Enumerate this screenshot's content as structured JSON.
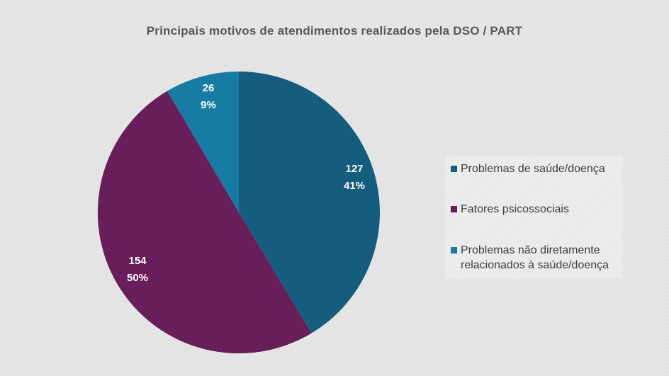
{
  "chart_data": {
    "type": "pie",
    "title": "Principais motivos de atendimentos realizados pela DSO / PART",
    "slices": [
      {
        "label": "Problemas de saúde/doença",
        "value": 127,
        "percent_label": "41%",
        "value_label": "127",
        "color": "#145d7d"
      },
      {
        "label": "Fatores psicossociais",
        "value": 154,
        "percent_label": "50%",
        "value_label": "154",
        "color": "#671e5a"
      },
      {
        "label": "Problemas não diretamente\nrelacionados à saúde/doença",
        "value": 26,
        "percent_label": "9%",
        "value_label": "26",
        "color": "#167ca3"
      }
    ],
    "start_angle_deg": 0,
    "direction": "clockwise",
    "legend_position": "right"
  }
}
